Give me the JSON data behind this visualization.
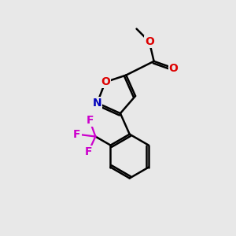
{
  "background_color": "#e8e8e8",
  "bond_color": "#000000",
  "bond_width": 1.8,
  "atom_colors": {
    "O": "#dd0000",
    "N": "#0000bb",
    "F": "#cc00cc",
    "C": "#000000"
  },
  "font_size_atom": 10,
  "fig_bg": "#e8e8e8",
  "figsize": [
    3.0,
    3.0
  ],
  "dpi": 100
}
